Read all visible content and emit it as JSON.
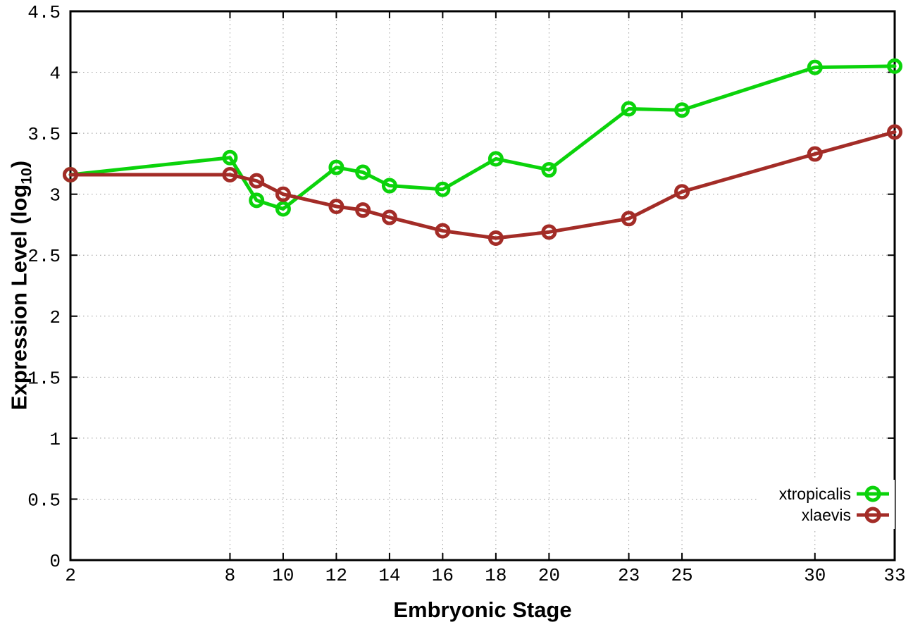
{
  "chart_data": {
    "type": "line",
    "title": "",
    "xlabel": "Embryonic Stage",
    "ylabel": "Expression Level (log10)",
    "ylabel_parts": {
      "pre": "Expression Level (log",
      "sub": "10",
      "post": ")"
    },
    "x": [
      2,
      8,
      9,
      10,
      12,
      13,
      14,
      16,
      18,
      20,
      23,
      25,
      30,
      33
    ],
    "xticks": [
      2,
      8,
      10,
      12,
      14,
      16,
      18,
      20,
      23,
      25,
      30,
      33
    ],
    "yticks": [
      0,
      0.5,
      1,
      1.5,
      2,
      2.5,
      3,
      3.5,
      4,
      4.5
    ],
    "xlim": [
      2,
      33
    ],
    "ylim": [
      0,
      4.5
    ],
    "grid": true,
    "legend_position": "inside-bottom-right",
    "series": [
      {
        "name": "xtropicalis",
        "color": "#0bd30b",
        "values": [
          3.16,
          3.3,
          2.95,
          2.88,
          3.22,
          3.18,
          3.07,
          3.04,
          3.29,
          3.2,
          3.7,
          3.69,
          4.04,
          4.05
        ]
      },
      {
        "name": "xlaevis",
        "color": "#a32c27",
        "values": [
          3.16,
          3.16,
          3.11,
          3.0,
          2.9,
          2.87,
          2.81,
          2.7,
          2.64,
          2.69,
          2.8,
          3.02,
          3.33,
          3.51
        ]
      }
    ],
    "colors": {
      "grid": "#9a9a9a",
      "axis": "#000000",
      "background": "#ffffff"
    }
  }
}
